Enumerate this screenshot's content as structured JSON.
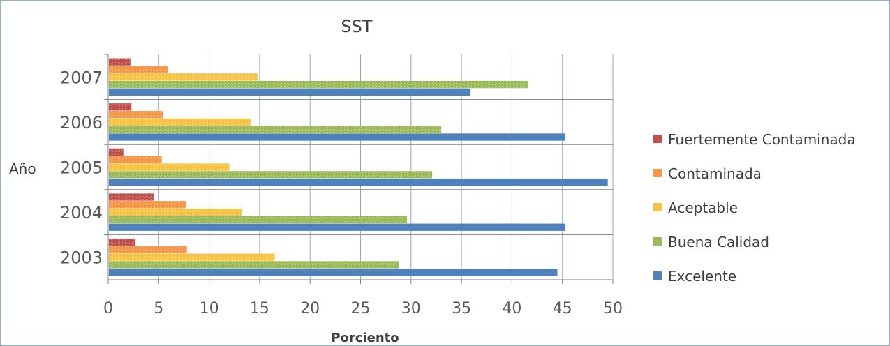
{
  "chart_data": {
    "type": "bar",
    "orientation": "horizontal",
    "title": "SST",
    "xlabel": "Porciento",
    "ylabel": "Año",
    "categories": [
      "2003",
      "2004",
      "2005",
      "2006",
      "2007"
    ],
    "xlim": [
      0,
      50
    ],
    "xticks": [
      "0",
      "5",
      "10",
      "15",
      "20",
      "25",
      "30",
      "35",
      "40",
      "45",
      "50"
    ],
    "grid": true,
    "legend_position": "right",
    "series": [
      {
        "name": "Fuertemente Contaminada",
        "color": "#c0504d",
        "values": [
          2.7,
          4.5,
          1.5,
          2.3,
          2.2
        ]
      },
      {
        "name": "Contaminada",
        "color": "#f79646",
        "values": [
          7.8,
          7.7,
          5.3,
          5.4,
          5.9
        ]
      },
      {
        "name": "Aceptable",
        "color": "#f6c342",
        "values": [
          16.5,
          13.2,
          12.0,
          14.1,
          14.8
        ]
      },
      {
        "name": "Buena Calidad",
        "color": "#9bbb59",
        "values": [
          28.8,
          29.6,
          32.1,
          33.0,
          41.6
        ]
      },
      {
        "name": "Excelente",
        "color": "#4f81bd",
        "values": [
          44.5,
          45.3,
          49.5,
          45.3,
          35.9
        ]
      }
    ]
  }
}
